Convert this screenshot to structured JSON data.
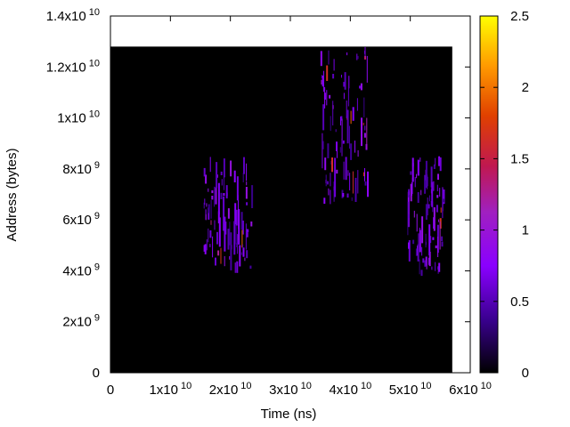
{
  "chart_data": {
    "type": "heatmap",
    "xlabel": "Time (ns)",
    "ylabel": "Address (bytes)",
    "xlim": [
      0,
      60000000000
    ],
    "ylim": [
      0,
      14000000000
    ],
    "data_extent": {
      "x": [
        0,
        57000000000
      ],
      "y": [
        0,
        12800000000
      ]
    },
    "colorbar": {
      "range": [
        0,
        2.5
      ],
      "ticks": [
        0,
        0.5,
        1,
        1.5,
        2,
        2.5
      ],
      "tick_labels": [
        "0",
        "0.5",
        "1",
        "1.5",
        "2",
        "2.5"
      ]
    },
    "x_ticks": [
      {
        "value": 0,
        "base": "0",
        "exp": ""
      },
      {
        "value": 10000000000,
        "base": "1x10",
        "exp": "10"
      },
      {
        "value": 20000000000,
        "base": "2x10",
        "exp": "10"
      },
      {
        "value": 30000000000,
        "base": "3x10",
        "exp": "10"
      },
      {
        "value": 40000000000,
        "base": "4x10",
        "exp": "10"
      },
      {
        "value": 50000000000,
        "base": "5x10",
        "exp": "10"
      },
      {
        "value": 60000000000,
        "base": "6x10",
        "exp": "10"
      }
    ],
    "y_ticks": [
      {
        "value": 0,
        "base": "0",
        "exp": ""
      },
      {
        "value": 2000000000,
        "base": "2x10",
        "exp": "9"
      },
      {
        "value": 4000000000,
        "base": "4x10",
        "exp": "9"
      },
      {
        "value": 6000000000,
        "base": "6x10",
        "exp": "9"
      },
      {
        "value": 8000000000,
        "base": "8x10",
        "exp": "9"
      },
      {
        "value": 10000000000,
        "base": "1x10",
        "exp": "10"
      },
      {
        "value": 12000000000,
        "base": "1.2x10",
        "exp": "10"
      },
      {
        "value": 14000000000,
        "base": "1.4x10",
        "exp": "10"
      }
    ],
    "clusters": [
      {
        "x_range": [
          15500000000,
          23500000000
        ],
        "y_range": [
          3900000000,
          8500000000
        ],
        "mean_value": 0.8
      },
      {
        "x_range": [
          35000000000,
          43000000000
        ],
        "y_range": [
          6400000000,
          12800000000
        ],
        "mean_value": 0.9
      },
      {
        "x_range": [
          49500000000,
          55500000000
        ],
        "y_range": [
          3800000000,
          8500000000
        ],
        "mean_value": 0.9
      }
    ]
  }
}
